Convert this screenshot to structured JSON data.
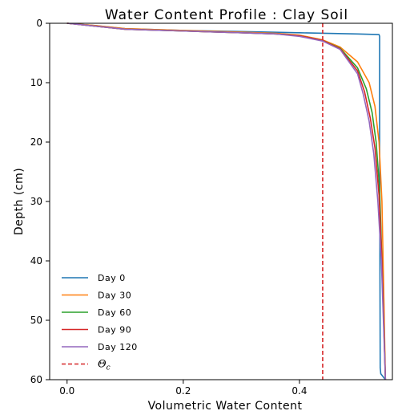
{
  "chart_data": {
    "type": "line",
    "title": "Water Content Profile : Clay Soil",
    "xlabel": "Volumetric Water Content",
    "ylabel": "Depth (cm)",
    "xlim": [
      -0.03,
      0.56
    ],
    "ylim": [
      60,
      0
    ],
    "y_inverted": true,
    "xticks": [
      0.0,
      0.2,
      0.4
    ],
    "xtick_labels": [
      "0.0",
      "0.2",
      "0.4"
    ],
    "yticks": [
      0,
      10,
      20,
      30,
      40,
      50,
      60
    ],
    "ytick_labels": [
      "0",
      "10",
      "20",
      "30",
      "40",
      "50",
      "60"
    ],
    "grid": false,
    "legend_position": "lower-left",
    "series": [
      {
        "name": "Day 0",
        "color": "#1f77b4",
        "x": [
          0.0,
          0.05,
          0.1,
          0.2,
          0.3,
          0.4,
          0.45,
          0.5,
          0.537,
          0.538,
          0.538,
          0.539,
          0.54,
          0.548
        ],
        "y": [
          0.0,
          0.4,
          0.9,
          1.2,
          1.4,
          1.6,
          1.7,
          1.8,
          1.9,
          2.2,
          20.0,
          58.0,
          59.0,
          60.0
        ]
      },
      {
        "name": "Day 30",
        "color": "#ff7f0e",
        "x": [
          0.0,
          0.05,
          0.1,
          0.2,
          0.3,
          0.36,
          0.4,
          0.44,
          0.47,
          0.5,
          0.52,
          0.53,
          0.537,
          0.542,
          0.545,
          0.548
        ],
        "y": [
          0.0,
          0.4,
          0.9,
          1.2,
          1.5,
          1.7,
          2.0,
          2.8,
          4.0,
          6.5,
          10.0,
          14.0,
          20.0,
          30.0,
          45.0,
          60.0
        ]
      },
      {
        "name": "Day 60",
        "color": "#2ca02c",
        "x": [
          0.0,
          0.05,
          0.1,
          0.2,
          0.3,
          0.36,
          0.4,
          0.44,
          0.47,
          0.5,
          0.515,
          0.525,
          0.532,
          0.538,
          0.542,
          0.548
        ],
        "y": [
          0.0,
          0.5,
          1.0,
          1.3,
          1.6,
          1.8,
          2.1,
          2.9,
          4.2,
          7.5,
          11.0,
          15.0,
          20.0,
          28.0,
          40.0,
          60.0
        ]
      },
      {
        "name": "Day 90",
        "color": "#d62728",
        "x": [
          0.0,
          0.05,
          0.1,
          0.2,
          0.3,
          0.36,
          0.4,
          0.44,
          0.47,
          0.5,
          0.512,
          0.522,
          0.53,
          0.537,
          0.542,
          0.548
        ],
        "y": [
          0.0,
          0.5,
          1.0,
          1.3,
          1.6,
          1.8,
          2.1,
          2.9,
          4.3,
          8.0,
          11.5,
          16.0,
          21.0,
          29.0,
          40.0,
          60.0
        ]
      },
      {
        "name": "Day 120",
        "color": "#9467bd",
        "x": [
          0.0,
          0.05,
          0.1,
          0.2,
          0.3,
          0.36,
          0.4,
          0.44,
          0.47,
          0.5,
          0.51,
          0.52,
          0.528,
          0.535,
          0.541,
          0.548
        ],
        "y": [
          0.0,
          0.5,
          1.0,
          1.3,
          1.6,
          1.8,
          2.2,
          3.0,
          4.4,
          8.5,
          12.0,
          16.5,
          22.0,
          30.0,
          40.0,
          60.0
        ]
      }
    ],
    "reference_lines": [
      {
        "name": "Θc",
        "orientation": "vertical",
        "x": 0.44,
        "color": "#d62728",
        "style": "dashed"
      }
    ]
  }
}
